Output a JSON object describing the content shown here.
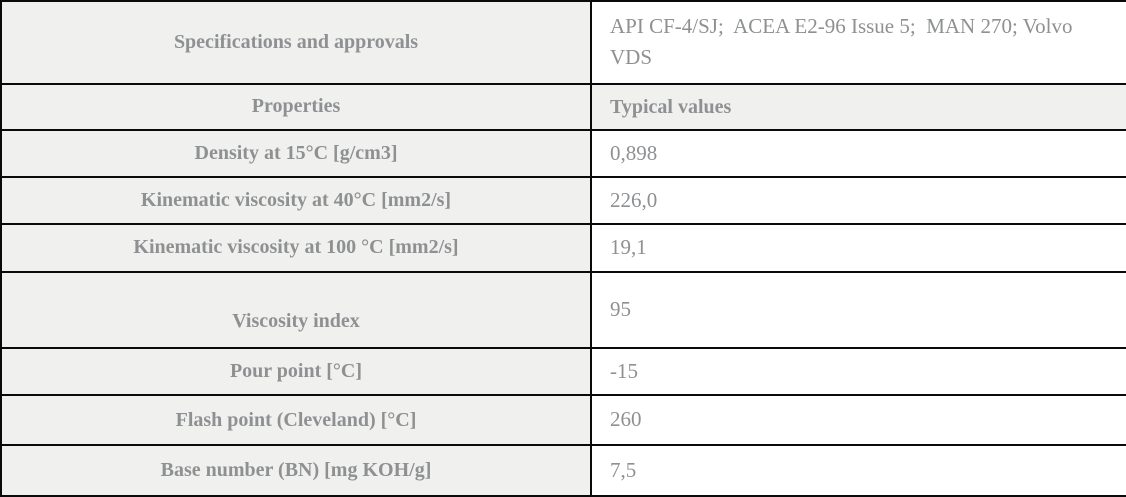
{
  "table": {
    "header": {
      "label": "Specifications and approvals",
      "value": "API CF-4/SJ;  ACEA E2-96 Issue 5;  MAN 270; Volvo VDS"
    },
    "columns": {
      "property": "Properties",
      "value": "Typical values"
    },
    "rows": [
      {
        "label": "Density at 15°C [g/cm3]",
        "value": "0,898"
      },
      {
        "label": "Kinematic viscosity at 40°C [mm2/s]",
        "value": "226,0"
      },
      {
        "label": "Kinematic viscosity at 100 °C [mm2/s]",
        "value": "19,1"
      },
      {
        "label": "Viscosity index",
        "value": "95"
      },
      {
        "label": "Pour point [°C]",
        "value": "-15"
      },
      {
        "label": "Flash point (Cleveland) [°C]",
        "value": "260"
      },
      {
        "label": "Base number (BN) [mg KOH/g]",
        "value": "7,5"
      }
    ]
  },
  "colors": {
    "cell_gray_bg": "#f0f0ef",
    "cell_white_bg": "#ffffff",
    "border": "#0a0a0a",
    "text_gray": "#8e9092"
  }
}
